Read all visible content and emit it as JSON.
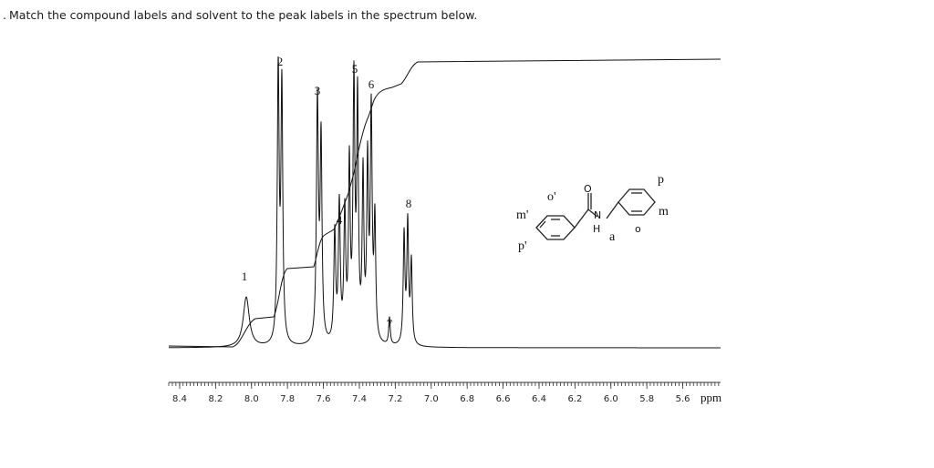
{
  "question": "Match the compound labels and solvent to the peak labels in the spectrum below.",
  "peak_labels": [
    "1",
    "2",
    "3",
    "4",
    "5",
    "6",
    "7",
    "8"
  ],
  "axis": {
    "tick_labels": [
      "8.4",
      "8.2",
      "8.0",
      "7.8",
      "7.6",
      "7.4",
      "7.2",
      "7.0",
      "6.8",
      "6.6",
      "6.4",
      "6.2",
      "6.0",
      "5.8",
      "5.6"
    ],
    "unit": "ppm"
  },
  "molecule": {
    "labels": [
      "m'",
      "o'",
      "p'",
      "O",
      "N",
      "H",
      "a",
      "o",
      "m",
      "p"
    ]
  }
}
